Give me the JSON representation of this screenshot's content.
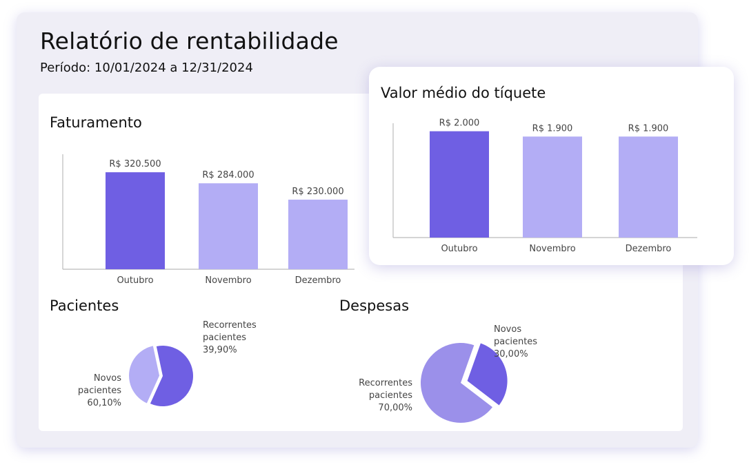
{
  "report": {
    "title": "Relatório de rentabilidade",
    "period": "Período: 10/01/2024 a 12/31/2024"
  },
  "colors": {
    "primary": "#6f5fe3",
    "light": "#b3adf5",
    "pie_light": "#9b90ea",
    "axis": "#bbbbbb",
    "label": "#444444"
  },
  "chart_data": [
    {
      "type": "bar",
      "title": "Faturamento",
      "categories": [
        "Outubro",
        "Novembro",
        "Dezembro"
      ],
      "values": [
        320500,
        284000,
        230000
      ],
      "value_labels": [
        "R$ 320.500",
        "R$ 284.000",
        "R$ 230.000"
      ],
      "ylim": [
        0,
        380000
      ],
      "highlight_index": 0
    },
    {
      "type": "pie",
      "title": "Pacientes",
      "slices": [
        {
          "label_line1": "Novos",
          "label_line2": "pacientes",
          "value": 60.1,
          "value_label": "60,10%"
        },
        {
          "label_line1": "Recorrentes",
          "label_line2": "pacientes",
          "value": 39.9,
          "value_label": "39,90%"
        }
      ]
    },
    {
      "type": "pie",
      "title": "Despesas",
      "slices": [
        {
          "label_line1": "Novos",
          "label_line2": "pacientes",
          "value": 30.0,
          "value_label": "30,00%"
        },
        {
          "label_line1": "Recorrentes",
          "label_line2": "pacientes",
          "value": 70.0,
          "value_label": "70,00%"
        }
      ]
    },
    {
      "type": "bar",
      "title": "Valor médio do tíquete",
      "categories": [
        "Outubro",
        "Novembro",
        "Dezembro"
      ],
      "values": [
        2000,
        1900,
        1900
      ],
      "value_labels": [
        "R$ 2.000",
        "R$ 1.900",
        "R$ 1.900"
      ],
      "ylim": [
        0,
        2150
      ],
      "highlight_index": 0
    }
  ]
}
